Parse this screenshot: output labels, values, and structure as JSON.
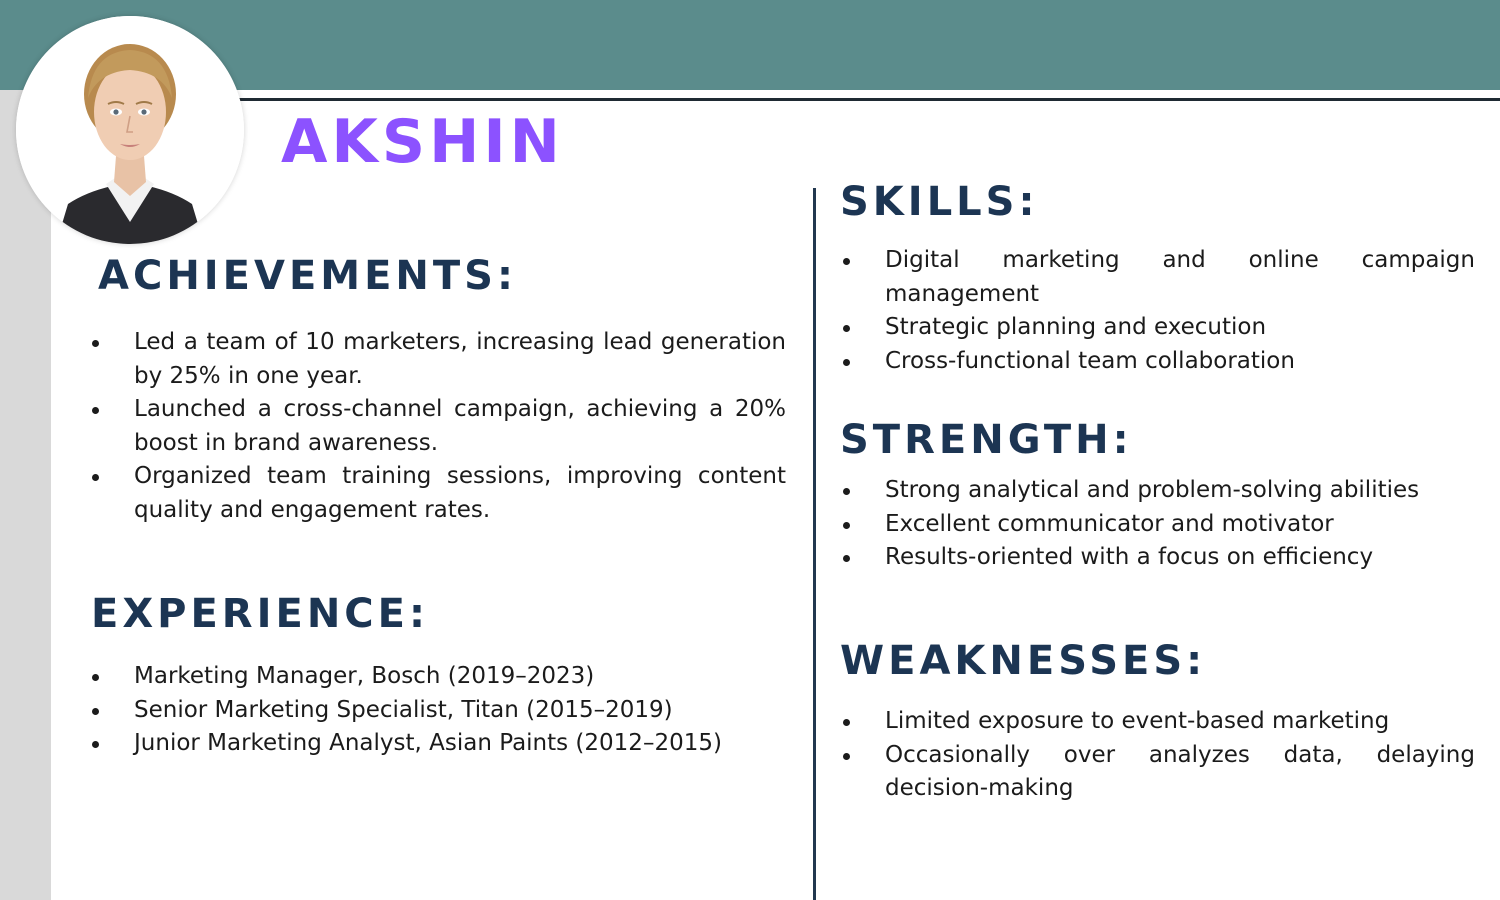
{
  "name": "AKSHIN",
  "achievements": {
    "heading": "ACHIEVEMENTS:",
    "items": [
      "Led a team of 10 marketers, increasing lead generation by 25% in one year.",
      "Launched a cross-channel campaign, achieving a 20% boost in brand awareness.",
      "Organized team training sessions, improving content quality and engagement rates."
    ]
  },
  "experience": {
    "heading": "EXPERIENCE:",
    "items": [
      "Marketing Manager, Bosch (2019–2023)",
      "Senior Marketing Specialist, Titan (2015–2019)",
      "Junior Marketing Analyst, Asian Paints (2012–2015)"
    ]
  },
  "skills": {
    "heading": "SKILLS:",
    "items": [
      "Digital marketing and online campaign management",
      "Strategic planning and execution",
      "Cross-functional team collaboration"
    ]
  },
  "strength": {
    "heading": "STRENGTH:",
    "items": [
      "Strong analytical and problem-solving abilities",
      "Excellent communicator and motivator",
      "Results-oriented with a focus on efficiency"
    ]
  },
  "weaknesses": {
    "heading": "WEAKNESSES:",
    "items": [
      "Limited exposure to event-based marketing",
      "Occasionally over analyzes data, delaying decision-making"
    ]
  },
  "colors": {
    "band": "#5b8c8c",
    "name": "#8c52ff",
    "heading": "#1c3553",
    "strip": "#d9d9d9"
  }
}
